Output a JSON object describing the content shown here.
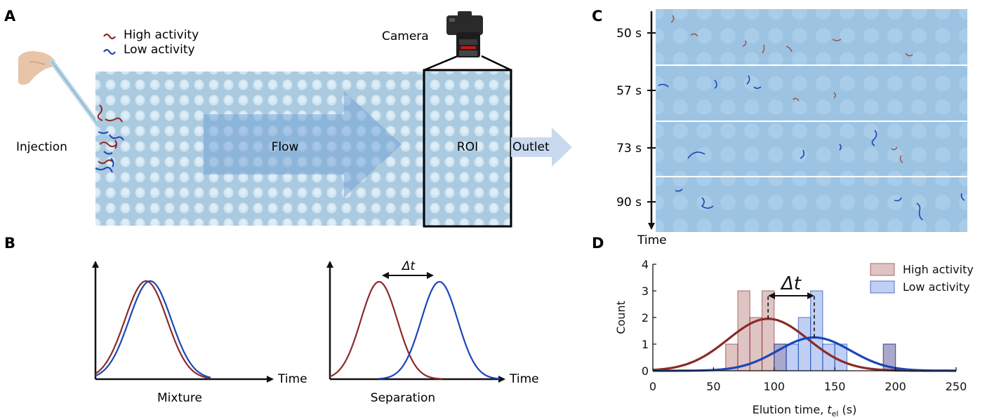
{
  "panels": {
    "A": {
      "letter": "A",
      "legend_high": "High activity",
      "legend_low": "Low activity",
      "camera": "Camera",
      "injection": "Injection",
      "flow": "Flow",
      "roi": "ROI",
      "outlet": "Outlet"
    },
    "B": {
      "letter": "B",
      "left_axis": "Time",
      "left_caption": "Mixture",
      "right_axis": "Time",
      "right_caption": "Separation",
      "delta": "Δt"
    },
    "C": {
      "letter": "C",
      "frames": [
        "50 s",
        "57 s",
        "73 s",
        "90 s"
      ],
      "axis": "Time"
    },
    "D": {
      "letter": "D"
    }
  },
  "chart_data": {
    "type": "bar",
    "xlabel_main": "Elution time, ",
    "xlabel_var": "t",
    "xlabel_sub": "el",
    "xlabel_unit": " (s)",
    "ylabel": "Count",
    "xlim": [
      0,
      250
    ],
    "ylim": [
      0,
      4
    ],
    "xticks": [
      0,
      50,
      100,
      150,
      200,
      250
    ],
    "yticks": [
      0,
      1,
      2,
      3,
      4
    ],
    "annotation": "Δt",
    "bin_width": 10,
    "legend_position": "top-right",
    "series": [
      {
        "name": "High activity",
        "color": "#8b2a2a",
        "bars": [
          [
            60,
            70,
            1
          ],
          [
            70,
            80,
            3
          ],
          [
            80,
            90,
            2
          ],
          [
            90,
            100,
            3
          ],
          [
            100,
            110,
            1
          ],
          [
            190,
            200,
            1
          ]
        ],
        "fit": {
          "mean": 95,
          "sd": 33,
          "peak": 1.95
        }
      },
      {
        "name": "Low activity",
        "color": "#1a47b8",
        "bars": [
          [
            100,
            110,
            1
          ],
          [
            110,
            120,
            1
          ],
          [
            120,
            130,
            2
          ],
          [
            130,
            140,
            3
          ],
          [
            140,
            150,
            1
          ],
          [
            150,
            160,
            1
          ],
          [
            190,
            200,
            1
          ]
        ],
        "fit": {
          "mean": 133,
          "sd": 30,
          "peak": 1.25
        }
      }
    ]
  }
}
